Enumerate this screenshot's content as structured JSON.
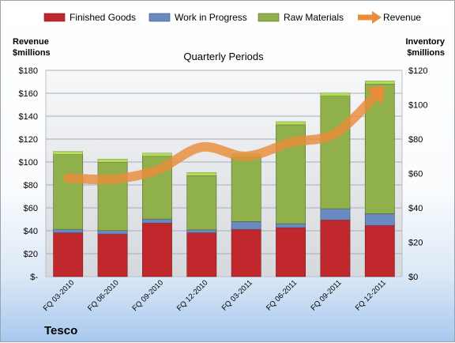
{
  "chart_data": {
    "type": "bar",
    "title": "Quarterly Periods",
    "left_axis_label": [
      "Revenue",
      "$millions"
    ],
    "right_axis_label": [
      "Inventory",
      "$millions"
    ],
    "company": "Tesco",
    "categories": [
      "FQ 03-2010",
      "FQ 06-2010",
      "FQ 09-2010",
      "FQ 12-2010",
      "FQ 03-2011",
      "FQ 06-2011",
      "FQ 09-2011",
      "FQ 12-2011"
    ],
    "left_ylim": [
      0,
      180
    ],
    "right_ylim": [
      0,
      120
    ],
    "left_ticks": [
      0,
      20,
      40,
      60,
      80,
      100,
      120,
      140,
      160,
      180
    ],
    "left_tick_labels": [
      "$-",
      "$20",
      "$40",
      "$60",
      "$80",
      "$100",
      "$120",
      "$140",
      "$160",
      "$180"
    ],
    "right_ticks": [
      0,
      20,
      40,
      60,
      80,
      100,
      120
    ],
    "right_tick_labels": [
      "$0",
      "$20",
      "$40",
      "$60",
      "$80",
      "$100",
      "$120"
    ],
    "grid": true,
    "legend_position": "top",
    "series": [
      {
        "name": "Finished Goods",
        "kind": "bar",
        "axis": "right",
        "color": "#c0282d",
        "values": [
          25.5,
          24.8,
          31.2,
          25.5,
          27.5,
          28.5,
          33.0,
          29.8
        ]
      },
      {
        "name": "Work in Progress",
        "kind": "bar",
        "axis": "right",
        "color": "#6a8ac2",
        "values": [
          2.0,
          2.0,
          2.3,
          1.7,
          4.5,
          2.3,
          6.5,
          6.8
        ]
      },
      {
        "name": "Raw Materials",
        "kind": "bar",
        "axis": "right",
        "color": "#8fb04a",
        "values": [
          43.5,
          39.7,
          36.5,
          31.5,
          37.5,
          57.5,
          65.5,
          75.4
        ]
      },
      {
        "name": "Revenue",
        "kind": "line",
        "axis": "left",
        "color": "#e98c3b",
        "values": [
          86,
          85,
          93,
          113,
          105,
          117,
          125,
          162
        ]
      }
    ]
  }
}
